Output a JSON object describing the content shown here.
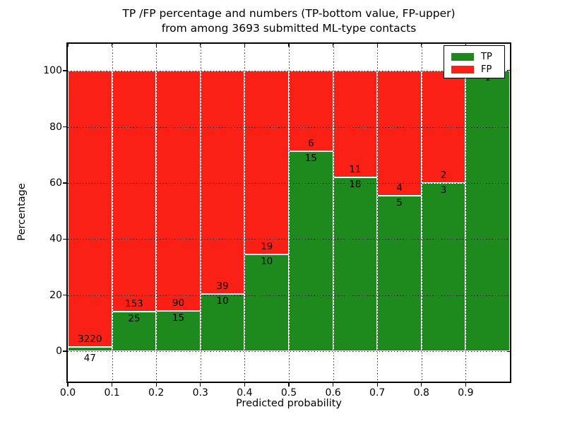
{
  "figure": {
    "background": "#ffffff",
    "title_line1": "TP /FP percentage and numbers (TP-bottom value, FP-upper)",
    "title_line2": "from among 3693 submitted ML-type contacts"
  },
  "chart_data": {
    "type": "bar",
    "stacked": true,
    "title": "TP /FP percentage and numbers (TP-bottom value, FP-upper) from among 3693 submitted ML-type contacts",
    "xlabel": "Predicted probability",
    "ylabel": "Percentage",
    "xlim": [
      0.0,
      1.0
    ],
    "ylim": [
      -10.8,
      109.6
    ],
    "x_ticks": [
      "0.0",
      "0.1",
      "0.2",
      "0.3",
      "0.4",
      "0.5",
      "0.6",
      "0.7",
      "0.8",
      "0.9"
    ],
    "x_tick_values": [
      0.0,
      0.1,
      0.2,
      0.3,
      0.4,
      0.5,
      0.6,
      0.7,
      0.8,
      0.9
    ],
    "y_ticks": [
      "0",
      "20",
      "40",
      "60",
      "80",
      "100"
    ],
    "y_tick_values": [
      0,
      20,
      40,
      60,
      80,
      100
    ],
    "grid": true,
    "grid_style": "dotted",
    "legend": {
      "position": "upper right",
      "entries": [
        {
          "label": "TP",
          "color": "#1e8a1e"
        },
        {
          "label": "FP",
          "color": "#fa2015"
        }
      ]
    },
    "colors": {
      "tp": "#1e8a1e",
      "fp": "#fa2015",
      "edge": "#ffffff",
      "grid": "#000000"
    },
    "bins": [
      {
        "x0": 0.0,
        "x1": 0.1,
        "tp_count": 47,
        "fp_count": 3220,
        "tp_label": "47",
        "fp_label": "3220",
        "tp_pct": 1.44,
        "fp_pct": 98.56
      },
      {
        "x0": 0.1,
        "x1": 0.2,
        "tp_count": 25,
        "fp_count": 153,
        "tp_label": "25",
        "fp_label": "153",
        "tp_pct": 14.04,
        "fp_pct": 85.96
      },
      {
        "x0": 0.2,
        "x1": 0.3,
        "tp_count": 15,
        "fp_count": 90,
        "tp_label": "15",
        "fp_label": "90",
        "tp_pct": 14.29,
        "fp_pct": 85.71
      },
      {
        "x0": 0.3,
        "x1": 0.4,
        "tp_count": 10,
        "fp_count": 39,
        "tp_label": "10",
        "fp_label": "39",
        "tp_pct": 20.41,
        "fp_pct": 79.59
      },
      {
        "x0": 0.4,
        "x1": 0.5,
        "tp_count": 10,
        "fp_count": 19,
        "tp_label": "10",
        "fp_label": "19",
        "tp_pct": 34.48,
        "fp_pct": 65.52
      },
      {
        "x0": 0.5,
        "x1": 0.6,
        "tp_count": 15,
        "fp_count": 6,
        "tp_label": "15",
        "fp_label": "6",
        "tp_pct": 71.43,
        "fp_pct": 28.57
      },
      {
        "x0": 0.6,
        "x1": 0.7,
        "tp_count": 18,
        "fp_count": 11,
        "tp_label": "18",
        "fp_label": "11",
        "tp_pct": 62.07,
        "fp_pct": 37.93
      },
      {
        "x0": 0.7,
        "x1": 0.8,
        "tp_count": 5,
        "fp_count": 4,
        "tp_label": "5",
        "fp_label": "4",
        "tp_pct": 55.56,
        "fp_pct": 44.44
      },
      {
        "x0": 0.8,
        "x1": 0.9,
        "tp_count": 3,
        "fp_count": 2,
        "tp_label": "3",
        "fp_label": "2",
        "tp_pct": 60.0,
        "fp_pct": 40.0
      },
      {
        "x0": 0.9,
        "x1": 1.0,
        "tp_count": 1,
        "fp_count": 0,
        "tp_label": "1",
        "fp_label": "",
        "tp_pct": 100.0,
        "fp_pct": 0.0
      }
    ]
  }
}
